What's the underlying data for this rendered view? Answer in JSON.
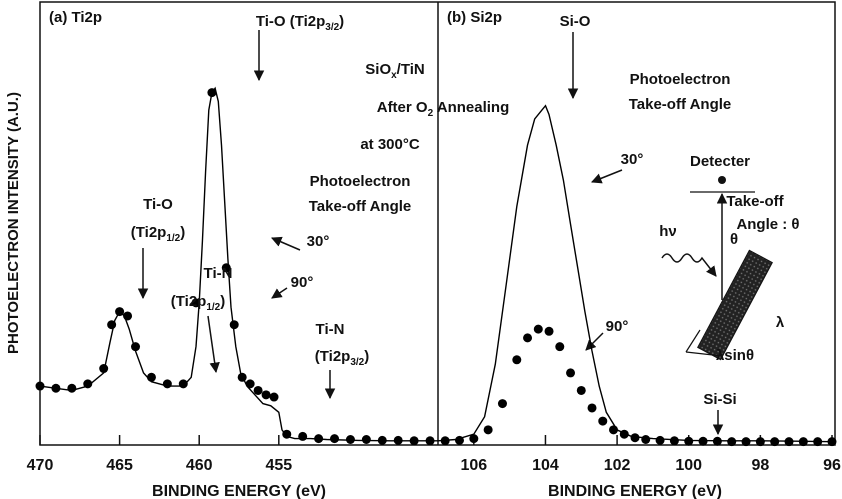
{
  "chart_data": [
    {
      "type": "line",
      "panel_label": "(a) Ti2p",
      "xlabel": "BINDING ENERGY (eV)",
      "ylabel": "PHOTOELECTRON INTENSITY (A.U.)",
      "xlim": [
        470,
        445
      ],
      "ylim": [
        0,
        100
      ],
      "xticks": [
        470,
        465,
        460,
        455
      ],
      "series": [
        {
          "name": "30°",
          "color": "#000000",
          "style": "line",
          "x": [
            470,
            469,
            468,
            467,
            466,
            465.6,
            465.3,
            465,
            464.7,
            464.4,
            464,
            463.5,
            463,
            462,
            461,
            460.5,
            460.2,
            460,
            459.8,
            459.6,
            459.4,
            459.2,
            459,
            458.8,
            458.6,
            458.4,
            458.2,
            458,
            457.7,
            457.4,
            457,
            456.5,
            456,
            455.5,
            455,
            454.8,
            454.5,
            454,
            453,
            452,
            450,
            448,
            446,
            445
          ],
          "values": [
            13,
            12.5,
            12,
            13,
            16,
            23,
            28,
            30,
            29,
            26,
            21,
            16,
            14,
            13,
            13,
            15,
            22,
            32,
            46,
            62,
            76,
            80,
            81,
            78,
            68,
            55,
            42,
            31,
            22,
            16,
            13,
            11,
            9,
            8.5,
            7,
            3,
            1.5,
            1,
            1,
            0.8,
            0.6,
            0.5,
            0.5,
            0.5
          ]
        },
        {
          "name": "90°",
          "color": "#000000",
          "style": "dots",
          "x": [
            470,
            469,
            468,
            467,
            466,
            465.5,
            465,
            464.5,
            464,
            463,
            462,
            461,
            460.2,
            459.2,
            458.3,
            457.8,
            457.3,
            456.8,
            456.3,
            455.8,
            455.3,
            454.5,
            453.5,
            452.5,
            451.5,
            450.5,
            449.5,
            448.5,
            447.5,
            446.5,
            445.5
          ],
          "values": [
            13,
            12.5,
            12.5,
            13.5,
            17,
            27,
            30,
            29,
            22,
            15,
            13.5,
            13.5,
            32,
            80,
            40,
            27,
            15,
            13.5,
            12,
            11,
            10.5,
            2,
            1.5,
            1,
            1,
            0.8,
            0.8,
            0.6,
            0.6,
            0.5,
            0.5
          ]
        }
      ],
      "annotations": [
        {
          "text": "Ti-O (Ti2p",
          "sub": "3/2",
          "after": ")"
        },
        {
          "text": "Ti-O"
        },
        {
          "text": "(Ti2p",
          "sub": "1/2",
          "after": ")"
        },
        {
          "text": "Ti-N"
        },
        {
          "text": "(Ti2p",
          "sub": "1/2",
          "after": ")"
        },
        {
          "text": "Photoelectron"
        },
        {
          "text": "Take-off Angle"
        },
        {
          "text": "30°"
        },
        {
          "text": "90°"
        },
        {
          "text": "Ti-N"
        },
        {
          "text": "(Ti2p",
          "sub": "3/2",
          "after": ")"
        },
        {
          "text": "SiO",
          "sub": "x",
          "after": "/TiN"
        },
        {
          "text": "After O",
          "sub": "2",
          "after": " Annealing"
        },
        {
          "text": "at 300°C"
        }
      ]
    },
    {
      "type": "line",
      "panel_label": "(b) Si2p",
      "xlabel": "BINDING ENERGY (eV)",
      "xlim": [
        107,
        96
      ],
      "ylim": [
        0,
        100
      ],
      "xticks": [
        106,
        104,
        102,
        100,
        98,
        96
      ],
      "series": [
        {
          "name": "30°",
          "color": "#000000",
          "style": "line",
          "x": [
            107,
            106.5,
            106,
            105.7,
            105.4,
            105.1,
            104.8,
            104.5,
            104.3,
            104.1,
            104,
            103.9,
            103.7,
            103.5,
            103.3,
            103.1,
            102.9,
            102.7,
            102.5,
            102.3,
            102,
            101.6,
            101,
            100,
            99,
            98,
            97,
            96
          ],
          "values": [
            0.5,
            0.8,
            2,
            6,
            18,
            36,
            54,
            68,
            74,
            76,
            77,
            75,
            68,
            60,
            50,
            40,
            30,
            21,
            13,
            7,
            3,
            1.5,
            1,
            0.6,
            0.5,
            0.5,
            0.4,
            0.3
          ]
        },
        {
          "name": "90°",
          "color": "#000000",
          "style": "dots",
          "x": [
            106.8,
            106.4,
            106,
            105.6,
            105.2,
            104.8,
            104.5,
            104.2,
            103.9,
            103.6,
            103.3,
            103,
            102.7,
            102.4,
            102.1,
            101.8,
            101.5,
            101.2,
            100.8,
            100.4,
            100,
            99.6,
            99.2,
            98.8,
            98.4,
            98,
            97.6,
            97.2,
            96.8,
            96.4,
            96
          ],
          "values": [
            0.5,
            0.6,
            1,
            3,
            9,
            19,
            24,
            26,
            25.5,
            22,
            16,
            12,
            8,
            5,
            3,
            2,
            1.2,
            0.8,
            0.6,
            0.5,
            0.4,
            0.4,
            0.4,
            0.3,
            0.3,
            0.3,
            0.3,
            0.3,
            0.3,
            0.3,
            0.3
          ]
        }
      ],
      "annotations": [
        {
          "text": "Si-O"
        },
        {
          "text": "Photoelectron"
        },
        {
          "text": "Take-off Angle"
        },
        {
          "text": "30°"
        },
        {
          "text": "90°"
        },
        {
          "text": "Si-Si"
        },
        {
          "text": "Detecter"
        },
        {
          "text": "Take-off"
        },
        {
          "text": "Angle : θ"
        },
        {
          "text": "hν"
        },
        {
          "text": "θ"
        },
        {
          "text": "λ"
        },
        {
          "text": "λsinθ"
        }
      ]
    }
  ]
}
